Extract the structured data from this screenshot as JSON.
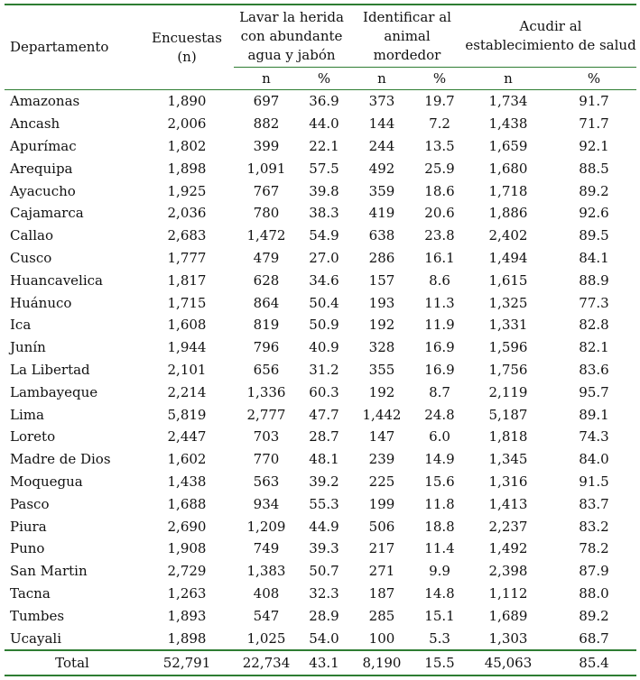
{
  "header": {
    "departamento": "Departamento",
    "encuestas": "Encuestas",
    "encuestas_n": "(n)",
    "group1": "Lavar la herida con abundante agua y jabón",
    "group2": "Identificar al animal mordedor",
    "group3": "Acudir al establecimiento de salud",
    "n": "n",
    "pct": "%"
  },
  "rows": [
    [
      "Amazonas",
      "1,890",
      "697",
      "36.9",
      "373",
      "19.7",
      "1,734",
      "91.7"
    ],
    [
      "Ancash",
      "2,006",
      "882",
      "44.0",
      "144",
      "7.2",
      "1,438",
      "71.7"
    ],
    [
      "Apurímac",
      "1,802",
      "399",
      "22.1",
      "244",
      "13.5",
      "1,659",
      "92.1"
    ],
    [
      "Arequipa",
      "1,898",
      "1,091",
      "57.5",
      "492",
      "25.9",
      "1,680",
      "88.5"
    ],
    [
      "Ayacucho",
      "1,925",
      "767",
      "39.8",
      "359",
      "18.6",
      "1,718",
      "89.2"
    ],
    [
      "Cajamarca",
      "2,036",
      "780",
      "38.3",
      "419",
      "20.6",
      "1,886",
      "92.6"
    ],
    [
      "Callao",
      "2,683",
      "1,472",
      "54.9",
      "638",
      "23.8",
      "2,402",
      "89.5"
    ],
    [
      "Cusco",
      "1,777",
      "479",
      "27.0",
      "286",
      "16.1",
      "1,494",
      "84.1"
    ],
    [
      "Huancavelica",
      "1,817",
      "628",
      "34.6",
      "157",
      "8.6",
      "1,615",
      "88.9"
    ],
    [
      "Huánuco",
      "1,715",
      "864",
      "50.4",
      "193",
      "11.3",
      "1,325",
      "77.3"
    ],
    [
      "Ica",
      "1,608",
      "819",
      "50.9",
      "192",
      "11.9",
      "1,331",
      "82.8"
    ],
    [
      "Junín",
      "1,944",
      "796",
      "40.9",
      "328",
      "16.9",
      "1,596",
      "82.1"
    ],
    [
      "La Libertad",
      "2,101",
      "656",
      "31.2",
      "355",
      "16.9",
      "1,756",
      "83.6"
    ],
    [
      "Lambayeque",
      "2,214",
      "1,336",
      "60.3",
      "192",
      "8.7",
      "2,119",
      "95.7"
    ],
    [
      "Lima",
      "5,819",
      "2,777",
      "47.7",
      "1,442",
      "24.8",
      "5,187",
      "89.1"
    ],
    [
      "Loreto",
      "2,447",
      "703",
      "28.7",
      "147",
      "6.0",
      "1,818",
      "74.3"
    ],
    [
      "Madre de Dios",
      "1,602",
      "770",
      "48.1",
      "239",
      "14.9",
      "1,345",
      "84.0"
    ],
    [
      "Moquegua",
      "1,438",
      "563",
      "39.2",
      "225",
      "15.6",
      "1,316",
      "91.5"
    ],
    [
      "Pasco",
      "1,688",
      "934",
      "55.3",
      "199",
      "11.8",
      "1,413",
      "83.7"
    ],
    [
      "Piura",
      "2,690",
      "1,209",
      "44.9",
      "506",
      "18.8",
      "2,237",
      "83.2"
    ],
    [
      "Puno",
      "1,908",
      "749",
      "39.3",
      "217",
      "11.4",
      "1,492",
      "78.2"
    ],
    [
      "San Martin",
      "2,729",
      "1,383",
      "50.7",
      "271",
      "9.9",
      "2,398",
      "87.9"
    ],
    [
      "Tacna",
      "1,263",
      "408",
      "32.3",
      "187",
      "14.8",
      "1,112",
      "88.0"
    ],
    [
      "Tumbes",
      "1,893",
      "547",
      "28.9",
      "285",
      "15.1",
      "1,689",
      "89.2"
    ],
    [
      "Ucayali",
      "1,898",
      "1,025",
      "54.0",
      "100",
      "5.3",
      "1,303",
      "68.7"
    ]
  ],
  "total": [
    "Total",
    "52,791",
    "22,734",
    "43.1",
    "8,190",
    "15.5",
    "45,063",
    "85.4"
  ],
  "colors": {
    "rule": "#2e7d32"
  }
}
